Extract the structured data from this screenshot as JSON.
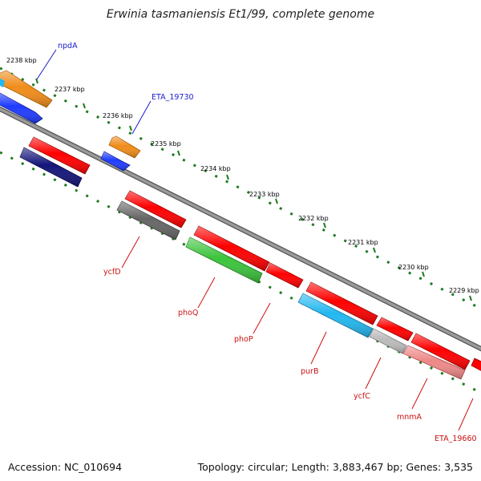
{
  "title": "Erwinia tasmaniensis Et1/99, complete genome",
  "footer": {
    "accession": "Accession: NC_010694",
    "summary": "Topology: circular; Length: 3,883,467 bp; Genes: 3,535"
  },
  "ticks": [
    {
      "label": "2238 kbp"
    },
    {
      "label": "2237 kbp"
    },
    {
      "label": "2236 kbp"
    },
    {
      "label": "2235 kbp"
    },
    {
      "label": "2234 kbp"
    },
    {
      "label": "2233 kbp"
    },
    {
      "label": "2232 kbp"
    },
    {
      "label": "2231 kbp"
    },
    {
      "label": "2230 kbp"
    },
    {
      "label": "2229 kbp"
    }
  ],
  "gene_labels": {
    "npdA": "npdA",
    "ETA_19730": "ETA_19730",
    "ycfD": "ycfD",
    "phoQ": "phoQ",
    "phoP": "phoP",
    "purB": "purB",
    "ycfC": "ycfC",
    "mnmA": "mnmA",
    "ETA_19660": "ETA_19660"
  },
  "colors": {
    "forward_gene": "#ff0000",
    "orange_gene": "#f08c1a",
    "blue_gene": "#1f3cff",
    "navy_gene": "#14147a",
    "gray_gene": "#666666",
    "green_gene": "#3cc43c",
    "cyan_gene": "#22b8f0",
    "lightgray_gene": "#bbbbbb",
    "pink_gene": "#ee8888",
    "backbone": "#888888",
    "tick": "#1f7a1f",
    "label_blue": "#1a1acc",
    "label_red": "#cc1111"
  }
}
